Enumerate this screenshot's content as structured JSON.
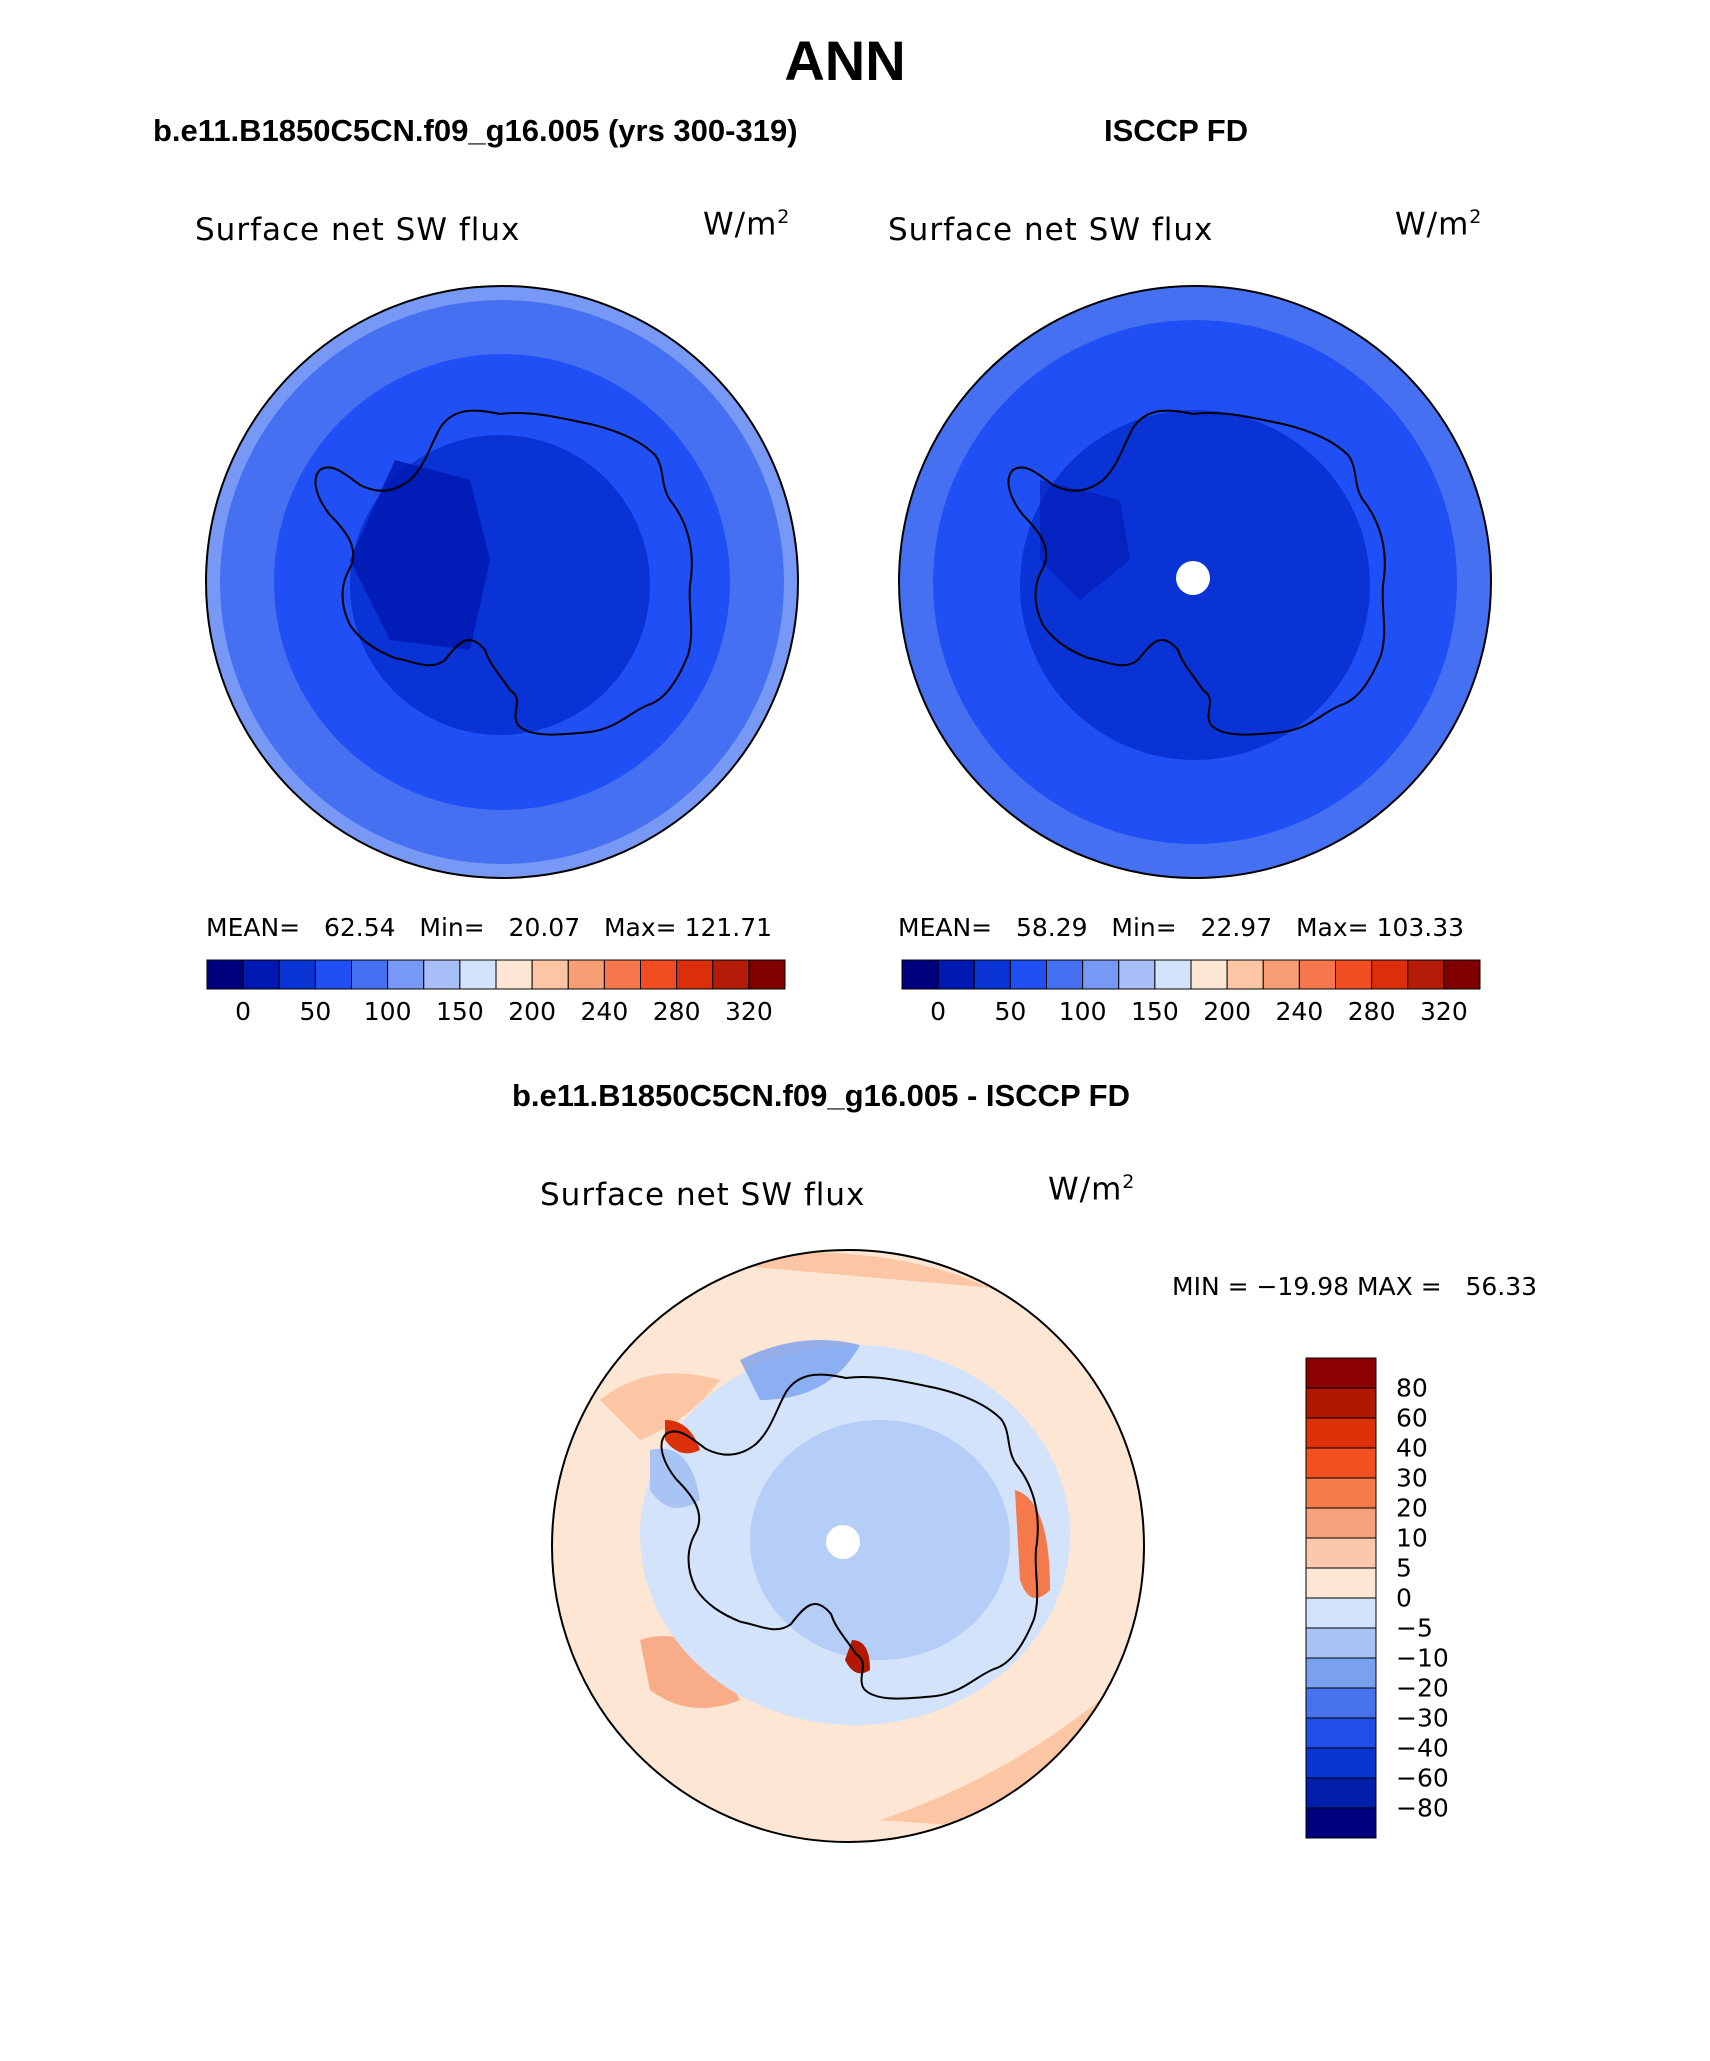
{
  "title": "ANN",
  "panels": [
    {
      "subtitle": "b.e11.B1850C5CN.f09_g16.005 (yrs 300-319)",
      "variable": "Surface net SW flux",
      "units_base": "W/m",
      "units_exp": "2",
      "stats": {
        "mean_label": "MEAN=",
        "mean": "62.54",
        "min_label": "Min=",
        "min": "20.07",
        "max_label": "Max=",
        "max": "121.71"
      }
    },
    {
      "subtitle": "ISCCP FD",
      "variable": "Surface net SW flux",
      "units_base": "W/m",
      "units_exp": "2",
      "stats": {
        "mean_label": "MEAN=",
        "mean": "58.29",
        "min_label": "Min=",
        "min": "22.97",
        "max_label": "Max=",
        "max": "103.33"
      }
    },
    {
      "subtitle": "b.e11.B1850C5CN.f09_g16.005 - ISCCP FD",
      "variable": "Surface net SW flux",
      "units_base": "W/m",
      "units_exp": "2",
      "minmax_text": "MIN = −19.98 MAX =   56.33"
    }
  ],
  "colorbar_top": {
    "colors": [
      "#00007f",
      "#0019b2",
      "#0a33d6",
      "#1f4ff5",
      "#4670f2",
      "#7898f5",
      "#a8bef7",
      "#d2e3fb",
      "#fde6d3",
      "#fcc5a4",
      "#f89e75",
      "#f6764e",
      "#f24d22",
      "#dc2e0b",
      "#b51c08",
      "#800000"
    ],
    "labels": [
      "0",
      "50",
      "100",
      "150",
      "200",
      "240",
      "280",
      "320"
    ]
  },
  "colorbar_diff": {
    "colors": [
      "#8b0000",
      "#b01800",
      "#dc3008",
      "#f2501f",
      "#f47a4c",
      "#f7a27c",
      "#fbc8ab",
      "#fde6d3",
      "#d2e3fb",
      "#a8c4f5",
      "#7aa0f0",
      "#4673ec",
      "#1f4fe8",
      "#0a35d0",
      "#001eaa",
      "#00007f"
    ],
    "labels": [
      "80",
      "60",
      "40",
      "30",
      "20",
      "10",
      "5",
      "0",
      "−5",
      "−10",
      "−20",
      "−30",
      "−40",
      "−60",
      "−80"
    ]
  }
}
